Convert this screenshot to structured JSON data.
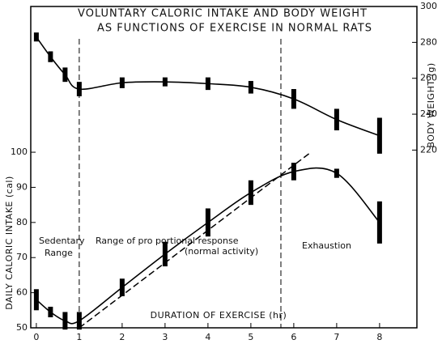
{
  "chart_data": {
    "type": "line",
    "title": [
      "VOLUNTARY CALORIC INTAKE AND BODY WEIGHT",
      "AS FUNCTIONS OF EXERCISE IN NORMAL RATS"
    ],
    "x_label": "DURATION OF EXERCISE (hr)",
    "y_label": "DAILY CALORIC INTAKE (cal)",
    "y2_label": "BODY WEIGHT (g)",
    "annotations": [
      "Sedentary",
      "Range",
      "Range of pro portional response",
      "(normal activity)",
      "Exhaustion"
    ],
    "x": [
      0,
      0.33,
      0.67,
      1,
      2,
      3,
      4,
      5,
      6,
      7,
      8
    ],
    "series": [
      {
        "name": "Daily caloric intake",
        "color": "#000",
        "values": [
          58,
          54.5,
          52,
          52,
          61.5,
          71,
          80,
          88.5,
          94.5,
          94,
          80
        ],
        "errors": [
          3,
          1.5,
          2.5,
          2.5,
          2.5,
          3.5,
          4,
          3.5,
          2.5,
          1.3,
          6
        ]
      },
      {
        "name": "Body weight",
        "color": "#000",
        "axis": "y2",
        "values": [
          283,
          272,
          262,
          254,
          257.5,
          258,
          257,
          255,
          248.5,
          237,
          228
        ],
        "errors": [
          2.5,
          3,
          4,
          4,
          3,
          2.5,
          3.5,
          3.5,
          5.5,
          6,
          10
        ]
      }
    ],
    "reference_line": {
      "x": [
        1,
        6.4
      ],
      "y": [
        50,
        100
      ]
    },
    "vlines": [
      1,
      5.7
    ],
    "xlim": [
      -0.13,
      8.87
    ],
    "xticks": [
      0,
      1,
      2,
      3,
      4,
      5,
      6,
      7,
      8
    ],
    "ylim": [
      50,
      141.5
    ],
    "yticks": [
      50,
      60,
      70,
      80,
      90,
      100
    ],
    "y2lim": [
      121,
      300
    ],
    "y2ticks": [
      220,
      240,
      260,
      280,
      300
    ]
  }
}
